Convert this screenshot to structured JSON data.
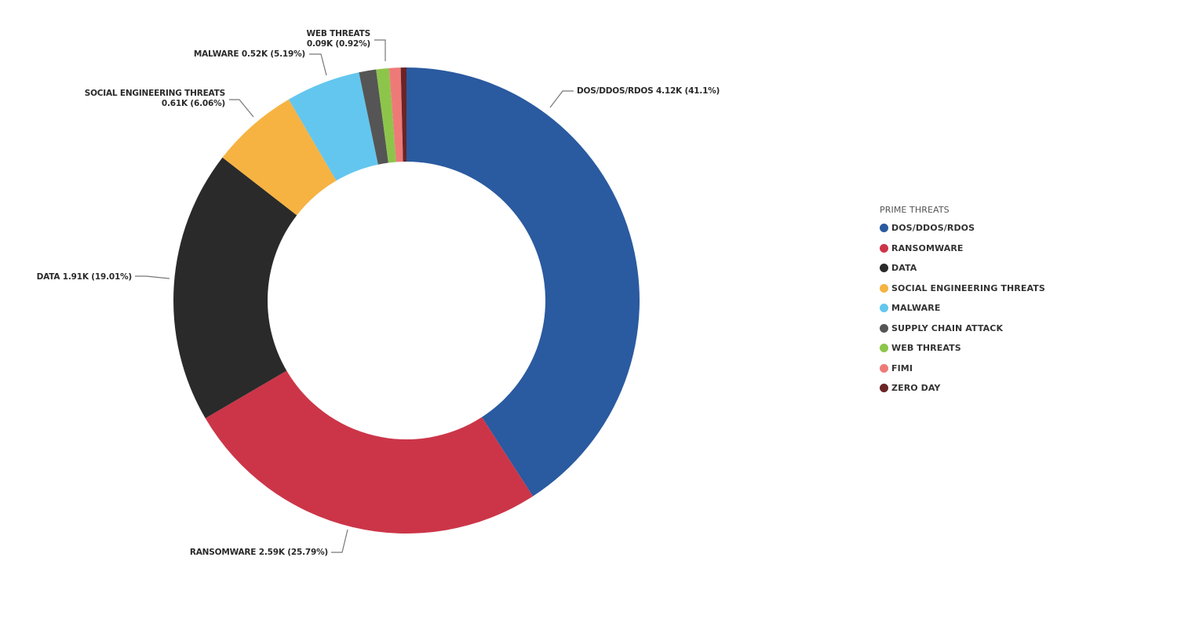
{
  "chart_data": {
    "type": "pie",
    "variant": "donut",
    "legend_title": "PRIME THREATS",
    "legend_position": "right",
    "series": [
      {
        "name": "DOS/DDOS/RDOS",
        "value": 4.12,
        "percent": 41.1,
        "color": "#2a5aa0",
        "label_value": "4.12K",
        "label_percent": "(41.1%)"
      },
      {
        "name": "RANSOMWARE",
        "value": 2.59,
        "percent": 25.79,
        "color": "#cc3548",
        "label_value": "2.59K",
        "label_percent": "(25.79%)"
      },
      {
        "name": "DATA",
        "value": 1.91,
        "percent": 19.01,
        "color": "#2a2a2a",
        "label_value": "1.91K",
        "label_percent": "(19.01%)"
      },
      {
        "name": "SOCIAL ENGINEERING THREATS",
        "value": 0.61,
        "percent": 6.06,
        "color": "#f6b342",
        "label_value": "0.61K",
        "label_percent": "(6.06%)"
      },
      {
        "name": "MALWARE",
        "value": 0.52,
        "percent": 5.19,
        "color": "#63c6ee",
        "label_value": "0.52K",
        "label_percent": "(5.19%)"
      },
      {
        "name": "SUPPLY CHAIN ATTACK",
        "value": 0.12,
        "percent": 1.2,
        "color": "#555555",
        "label_value": "",
        "label_percent": ""
      },
      {
        "name": "WEB THREATS",
        "value": 0.09,
        "percent": 0.92,
        "color": "#8dc54b",
        "label_value": "0.09K",
        "label_percent": "(0.92%)"
      },
      {
        "name": "FIMI",
        "value": 0.08,
        "percent": 0.8,
        "color": "#ee7a78",
        "label_value": "",
        "label_percent": ""
      },
      {
        "name": "ZERO DAY",
        "value": 0.04,
        "percent": 0.4,
        "color": "#6b2426",
        "label_value": "",
        "label_percent": ""
      }
    ]
  }
}
